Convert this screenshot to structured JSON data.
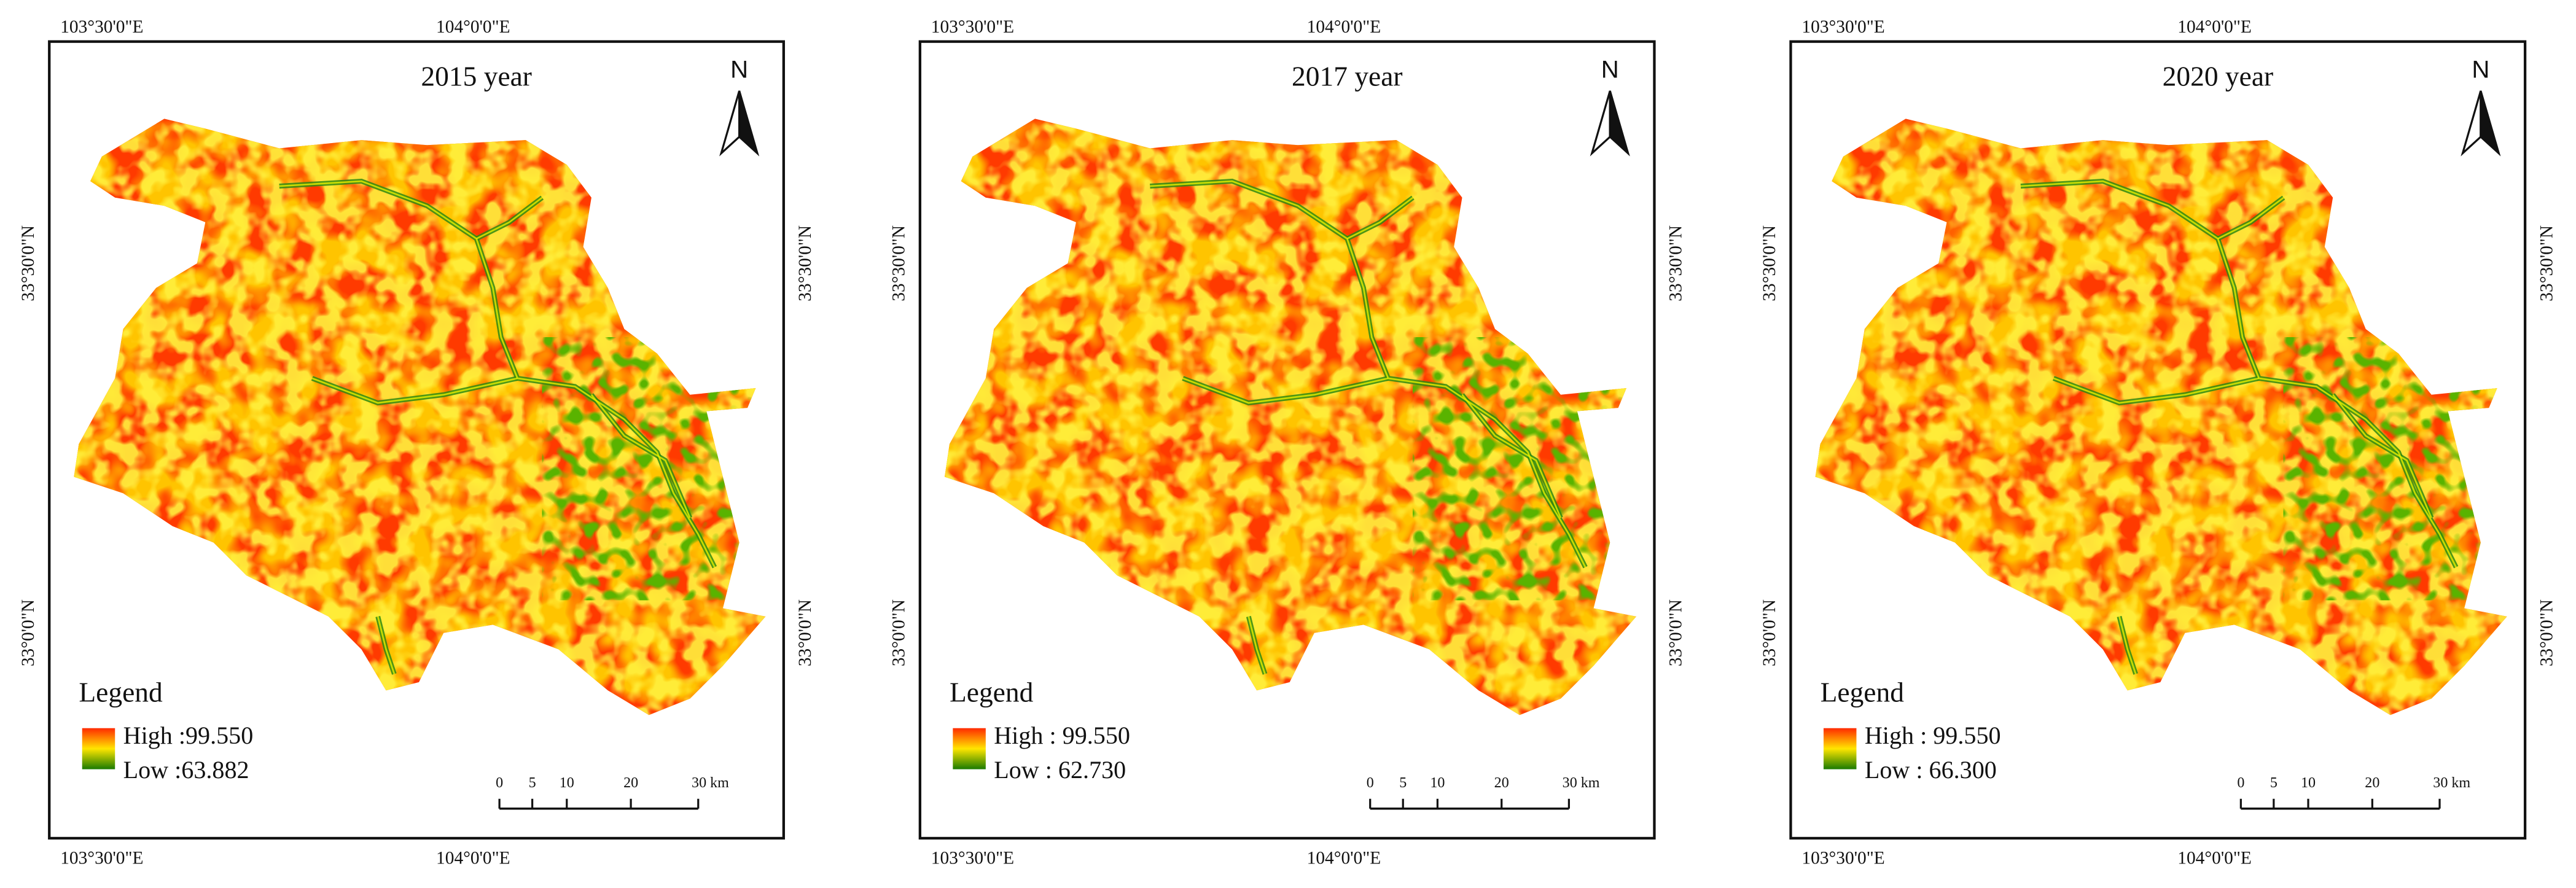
{
  "panels": [
    {
      "title": "2015 year",
      "north": "N",
      "lon_labels": [
        "103°30'0\"E",
        "104°0'0\"E"
      ],
      "lat_labels": [
        "33°30'0\"N",
        "33°0'0\"N"
      ],
      "legend": {
        "title": "Legend",
        "high": "High :99.550",
        "low": "Low :63.882"
      },
      "scale_labels": [
        "0",
        "5",
        "10",
        "20",
        "30 km"
      ]
    },
    {
      "title": "2017 year",
      "north": "N",
      "lon_labels": [
        "103°30'0\"E",
        "104°0'0\"E"
      ],
      "lat_labels": [
        "33°30'0\"N",
        "33°0'0\"N"
      ],
      "legend": {
        "title": "Legend",
        "high": "High : 99.550",
        "low": "Low : 62.730"
      },
      "scale_labels": [
        "0",
        "5",
        "10",
        "20",
        "30 km"
      ]
    },
    {
      "title": "2020 year",
      "north": "N",
      "lon_labels": [
        "103°30'0\"E",
        "104°0'0\"E"
      ],
      "lat_labels": [
        "33°30'0\"N",
        "33°0'0\"N"
      ],
      "legend": {
        "title": "Legend",
        "high": "High : 99.550",
        "low": "Low : 66.300"
      },
      "scale_labels": [
        "0",
        "5",
        "10",
        "20",
        "30 km"
      ]
    }
  ]
}
